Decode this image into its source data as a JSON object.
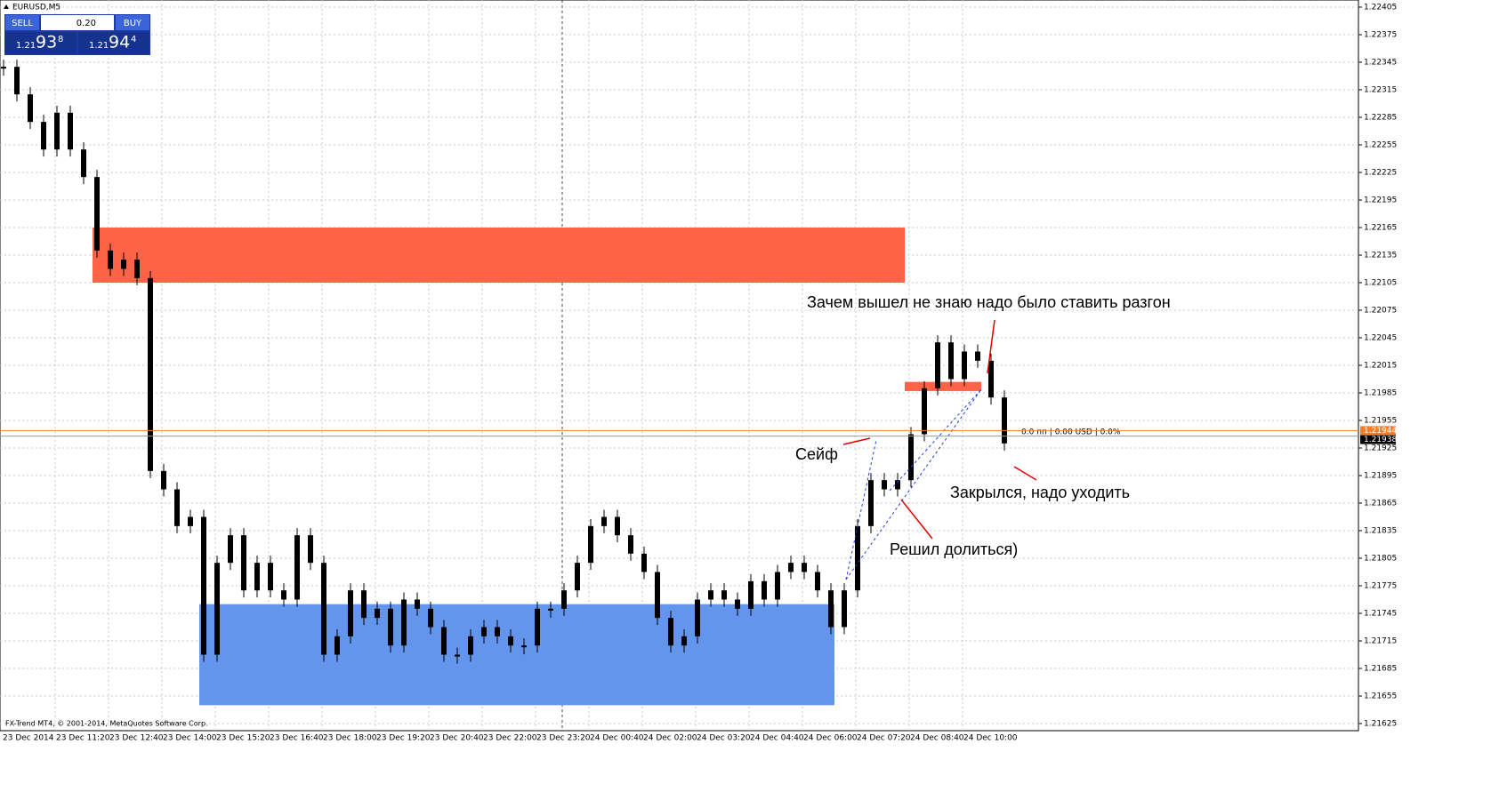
{
  "window": {
    "title": "EURUSD,M5"
  },
  "trade_panel": {
    "sell": "SELL",
    "buy": "BUY",
    "volume": "0.20",
    "sell_price": {
      "prefix": "1.21",
      "big": "93",
      "pip": "8"
    },
    "buy_price": {
      "prefix": "1.21",
      "big": "94",
      "pip": "4"
    }
  },
  "chart": {
    "ylim": [
      1.21625,
      1.22405
    ],
    "yticks": [
      1.22405,
      1.22375,
      1.22345,
      1.22315,
      1.22285,
      1.22255,
      1.22225,
      1.22195,
      1.22165,
      1.22135,
      1.22105,
      1.22075,
      1.22045,
      1.22015,
      1.21985,
      1.21955,
      1.21925,
      1.21895,
      1.21865,
      1.21835,
      1.21805,
      1.21775,
      1.21745,
      1.21715,
      1.21685,
      1.21655,
      1.21625
    ],
    "time_labels": [
      "23 Dec 2014",
      "23 Dec 11:20",
      "23 Dec 12:40",
      "23 Dec 14:00",
      "23 Dec 15:20",
      "23 Dec 16:40",
      "23 Dec 18:00",
      "23 Dec 19:20",
      "23 Dec 20:40",
      "23 Dec 22:00",
      "23 Dec 23:20",
      "24 Dec 00:40",
      "24 Dec 02:00",
      "24 Dec 03:20",
      "24 Dec 04:40",
      "24 Dec 06:00",
      "24 Dec 07:20",
      "24 Dec 08:40",
      "24 Dec 10:00"
    ],
    "closes": [
      1.2234,
      1.2231,
      1.2228,
      1.2225,
      1.2229,
      1.2225,
      1.2222,
      1.2214,
      1.2212,
      1.2213,
      1.2211,
      1.219,
      1.2188,
      1.2184,
      1.2185,
      1.217,
      1.218,
      1.2183,
      1.2177,
      1.218,
      1.2177,
      1.2176,
      1.2183,
      1.218,
      1.217,
      1.2172,
      1.2177,
      1.2174,
      1.2175,
      1.2171,
      1.2176,
      1.2175,
      1.2173,
      1.217,
      1.217,
      1.2172,
      1.2173,
      1.2172,
      1.2171,
      1.2171,
      1.2175,
      1.2175,
      1.2177,
      1.218,
      1.2184,
      1.2185,
      1.2183,
      1.2181,
      1.2179,
      1.2174,
      1.2171,
      1.2172,
      1.2176,
      1.2177,
      1.2176,
      1.2175,
      1.2178,
      1.2176,
      1.2179,
      1.218,
      1.2179,
      1.2177,
      1.2173,
      1.2177,
      1.2184,
      1.2189,
      1.2188,
      1.2189,
      1.2194,
      1.2199,
      1.2204,
      1.22,
      1.2203,
      1.2202,
      1.2198,
      1.2193
    ],
    "zones": [
      {
        "top": 1.22165,
        "bottom": 1.22105,
        "color": "#ff6347"
      },
      {
        "top": 1.21755,
        "bottom": 1.21645,
        "color": "#6495ed"
      },
      {
        "top": 1.21997,
        "bottom": 1.21987,
        "color": "#ff6347"
      }
    ],
    "price_lines": [
      {
        "value": 1.21944,
        "label": "1.21944",
        "color": "#f08030"
      },
      {
        "value": 1.21938,
        "label": "1.21938",
        "color": "#999999"
      }
    ]
  },
  "annotations": [
    "Зачем вышел не знаю надо было ставить разгон",
    "Сейф",
    "Закрылся, надо уходить",
    "Решил долиться)"
  ],
  "position_info": "0.0 пп | 0.00 USD | 0.0%",
  "copyright": "FX-Trend MT4, © 2001-2014, MetaQuotes Software Corp."
}
